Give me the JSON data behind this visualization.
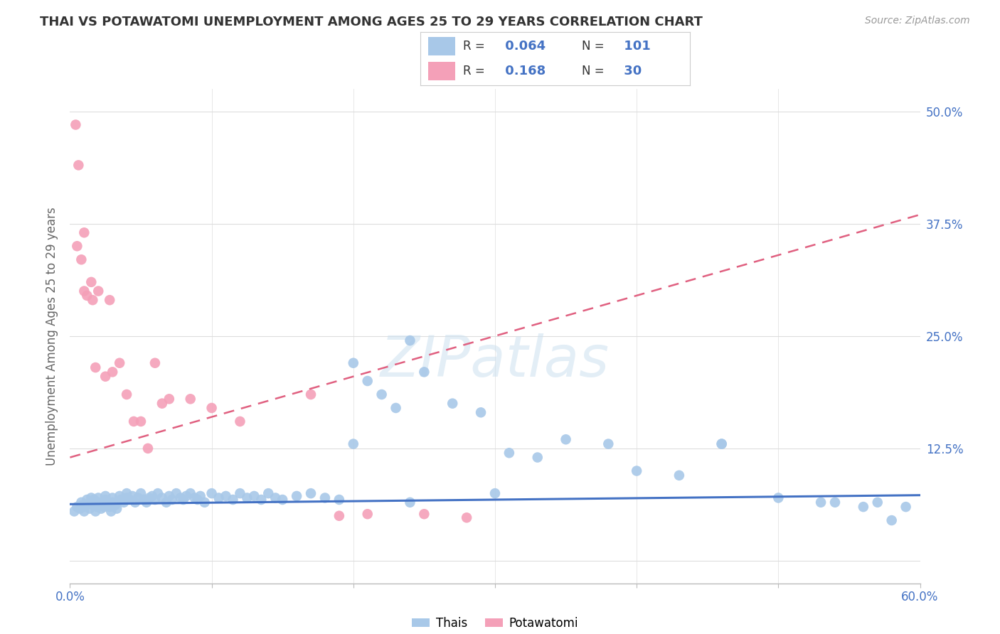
{
  "title": "THAI VS POTAWATOMI UNEMPLOYMENT AMONG AGES 25 TO 29 YEARS CORRELATION CHART",
  "source": "Source: ZipAtlas.com",
  "ylabel": "Unemployment Among Ages 25 to 29 years",
  "xlim": [
    0.0,
    0.6
  ],
  "ylim": [
    -0.025,
    0.525
  ],
  "thai_R": 0.064,
  "thai_N": 101,
  "potawatomi_R": 0.168,
  "potawatomi_N": 30,
  "thai_color": "#a8c8e8",
  "thai_line_color": "#4472c4",
  "potawatomi_color": "#f4a0b8",
  "potawatomi_line_color": "#e06080",
  "watermark": "ZIPatlas",
  "ytick_vals": [
    0.0,
    0.125,
    0.25,
    0.375,
    0.5
  ],
  "ytick_labels": [
    "",
    "12.5%",
    "25.0%",
    "37.5%",
    "50.0%"
  ],
  "thai_line_x0": 0.0,
  "thai_line_y0": 0.063,
  "thai_line_x1": 0.6,
  "thai_line_y1": 0.073,
  "pota_line_x0": 0.0,
  "pota_line_y0": 0.115,
  "pota_line_x1": 0.6,
  "pota_line_y1": 0.385,
  "background_color": "#ffffff",
  "grid_color": "#dddddd",
  "thai_x": [
    0.003,
    0.005,
    0.007,
    0.008,
    0.009,
    0.01,
    0.01,
    0.012,
    0.013,
    0.014,
    0.015,
    0.015,
    0.016,
    0.017,
    0.018,
    0.019,
    0.02,
    0.02,
    0.021,
    0.022,
    0.023,
    0.024,
    0.025,
    0.025,
    0.027,
    0.028,
    0.029,
    0.03,
    0.03,
    0.032,
    0.033,
    0.035,
    0.036,
    0.038,
    0.04,
    0.04,
    0.042,
    0.044,
    0.046,
    0.048,
    0.05,
    0.052,
    0.054,
    0.056,
    0.058,
    0.06,
    0.062,
    0.065,
    0.068,
    0.07,
    0.072,
    0.075,
    0.078,
    0.08,
    0.082,
    0.085,
    0.088,
    0.09,
    0.092,
    0.095,
    0.1,
    0.105,
    0.11,
    0.115,
    0.12,
    0.125,
    0.13,
    0.135,
    0.14,
    0.145,
    0.15,
    0.16,
    0.17,
    0.18,
    0.19,
    0.2,
    0.21,
    0.22,
    0.23,
    0.24,
    0.25,
    0.27,
    0.29,
    0.31,
    0.33,
    0.35,
    0.38,
    0.4,
    0.43,
    0.46,
    0.5,
    0.53,
    0.56,
    0.58,
    0.2,
    0.24,
    0.3,
    0.46,
    0.54,
    0.57,
    0.59
  ],
  "thai_y": [
    0.055,
    0.06,
    0.058,
    0.065,
    0.062,
    0.06,
    0.055,
    0.068,
    0.063,
    0.058,
    0.065,
    0.07,
    0.062,
    0.068,
    0.055,
    0.06,
    0.065,
    0.07,
    0.062,
    0.058,
    0.065,
    0.06,
    0.068,
    0.072,
    0.065,
    0.06,
    0.055,
    0.07,
    0.065,
    0.062,
    0.058,
    0.072,
    0.068,
    0.065,
    0.07,
    0.075,
    0.068,
    0.072,
    0.065,
    0.07,
    0.075,
    0.068,
    0.065,
    0.07,
    0.072,
    0.068,
    0.075,
    0.07,
    0.065,
    0.072,
    0.068,
    0.075,
    0.07,
    0.068,
    0.072,
    0.075,
    0.07,
    0.068,
    0.072,
    0.065,
    0.075,
    0.07,
    0.072,
    0.068,
    0.075,
    0.07,
    0.072,
    0.068,
    0.075,
    0.07,
    0.068,
    0.072,
    0.075,
    0.07,
    0.068,
    0.22,
    0.2,
    0.185,
    0.17,
    0.245,
    0.21,
    0.175,
    0.165,
    0.12,
    0.115,
    0.135,
    0.13,
    0.1,
    0.095,
    0.13,
    0.07,
    0.065,
    0.06,
    0.045,
    0.13,
    0.065,
    0.075,
    0.13,
    0.065,
    0.065,
    0.06
  ],
  "potawatomi_x": [
    0.004,
    0.006,
    0.005,
    0.008,
    0.01,
    0.01,
    0.012,
    0.015,
    0.016,
    0.018,
    0.02,
    0.025,
    0.028,
    0.03,
    0.035,
    0.04,
    0.045,
    0.05,
    0.055,
    0.06,
    0.065,
    0.07,
    0.085,
    0.1,
    0.12,
    0.17,
    0.19,
    0.21,
    0.25,
    0.28
  ],
  "potawatomi_y": [
    0.485,
    0.44,
    0.35,
    0.335,
    0.365,
    0.3,
    0.295,
    0.31,
    0.29,
    0.215,
    0.3,
    0.205,
    0.29,
    0.21,
    0.22,
    0.185,
    0.155,
    0.155,
    0.125,
    0.22,
    0.175,
    0.18,
    0.18,
    0.17,
    0.155,
    0.185,
    0.05,
    0.052,
    0.052,
    0.048
  ]
}
